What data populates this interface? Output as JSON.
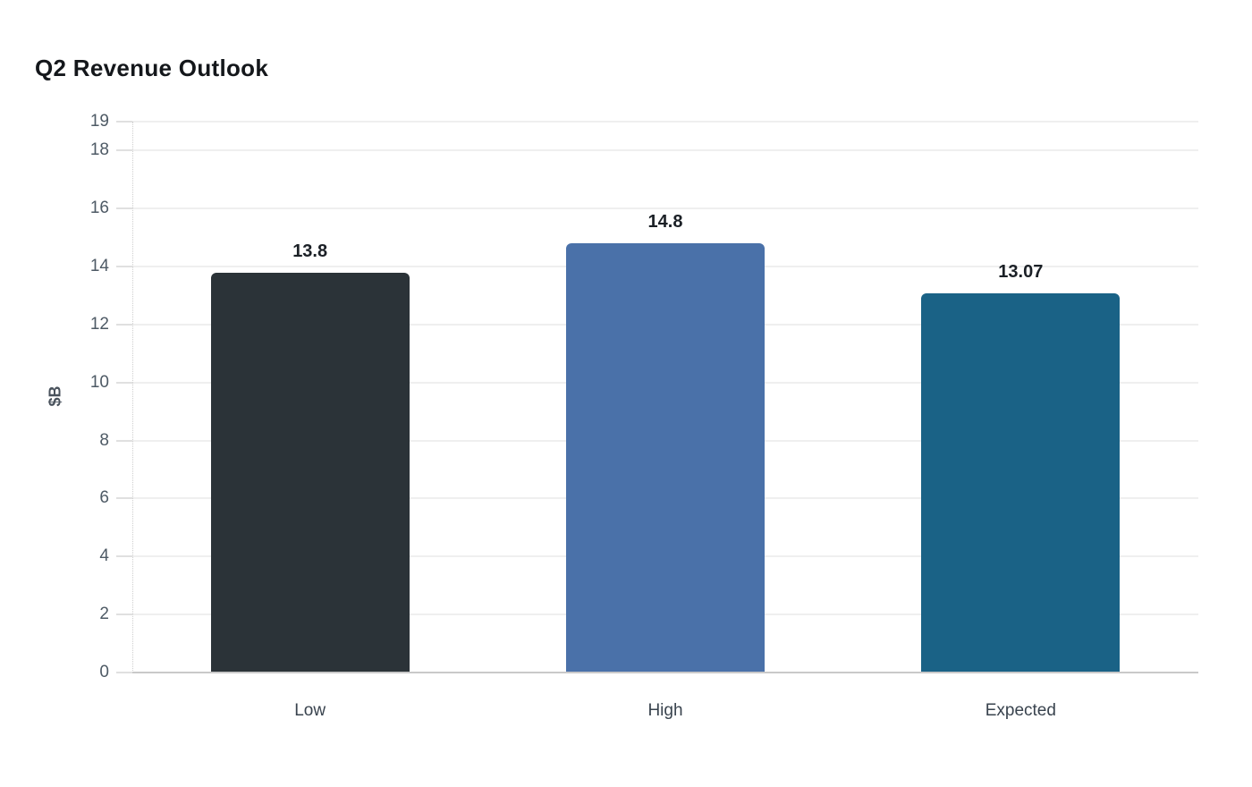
{
  "title": "Q2 Revenue Outlook",
  "chart_data": {
    "type": "bar",
    "title": "Q2 Revenue Outlook",
    "categories": [
      "Low",
      "High",
      "Expected"
    ],
    "values": [
      13.8,
      14.8,
      13.07
    ],
    "value_labels": [
      "13.8",
      "14.8",
      "13.07"
    ],
    "bar_colors": [
      "#2b3338",
      "#4a71a9",
      "#1a6286"
    ],
    "xlabel": "",
    "ylabel": "$B",
    "ylim": [
      0,
      19
    ],
    "yticks": [
      0,
      2,
      4,
      6,
      8,
      10,
      12,
      14,
      16,
      18,
      19
    ],
    "grid": true,
    "legend": false
  },
  "colors": {
    "title_text": "#14171b",
    "tick_label": "#4e5a65",
    "category_label": "#39434e",
    "value_label": "#1b2026",
    "axis_title": "#49525c",
    "gridline": "#efefef",
    "tick_mark": "#e0e0e0",
    "baseline": "#c9c9c9",
    "axis_dotted": "#cfcfcf",
    "background": "#ffffff"
  }
}
